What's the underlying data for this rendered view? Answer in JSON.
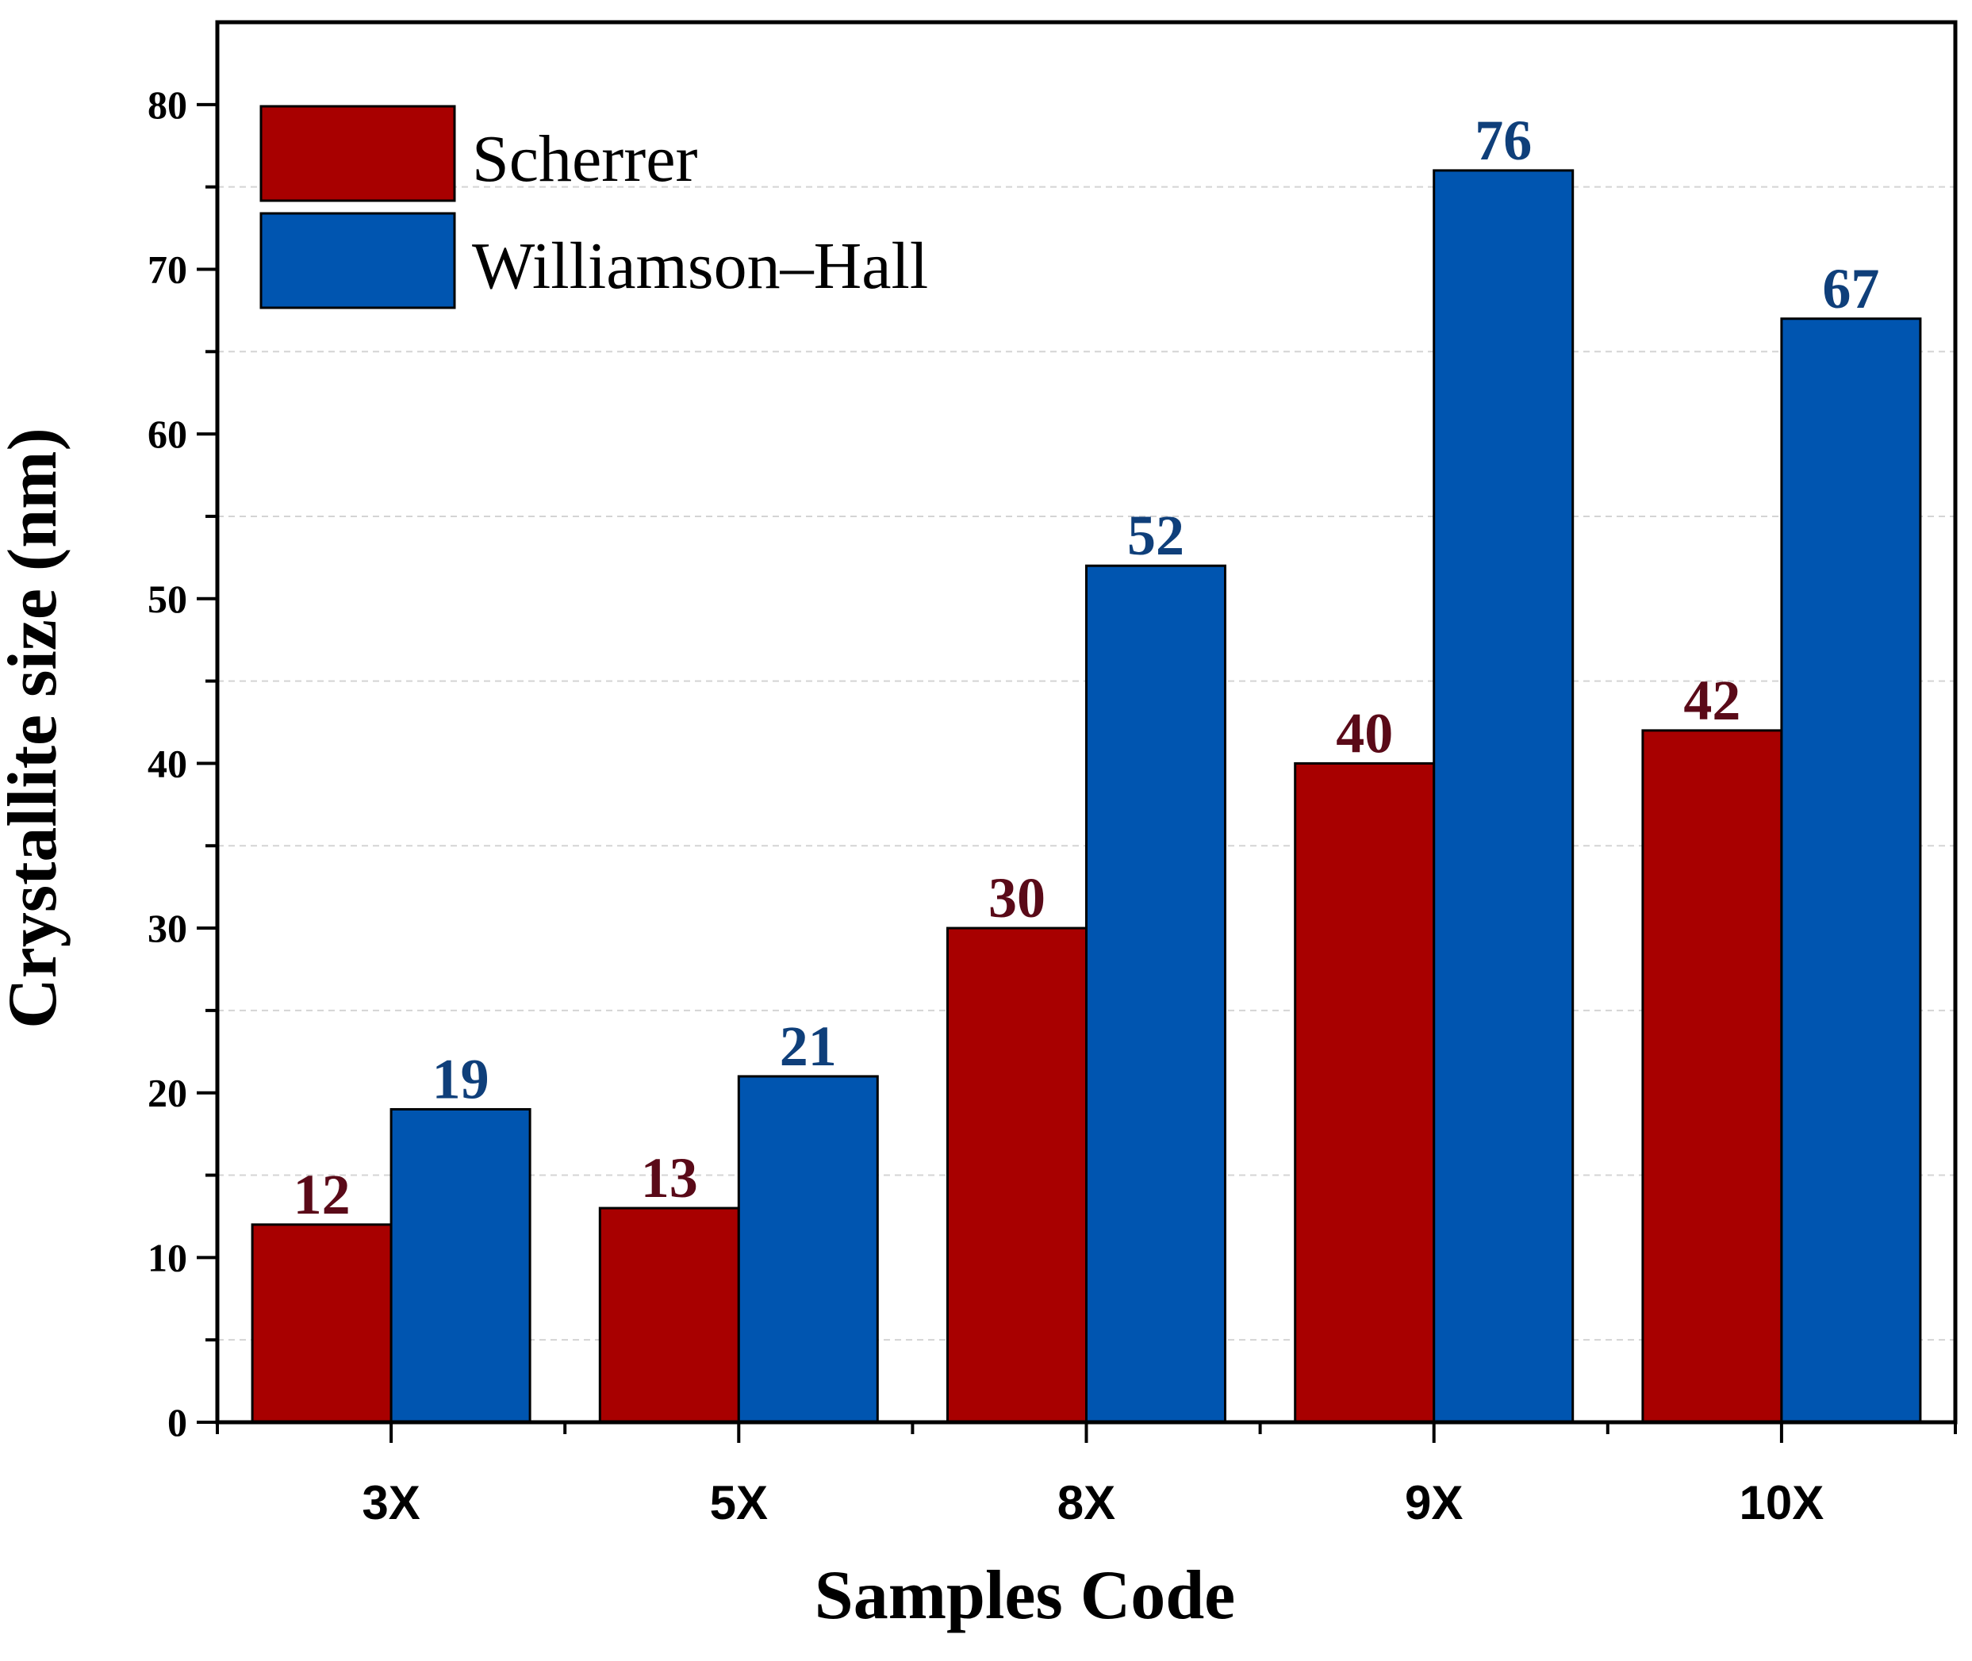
{
  "chart_data": {
    "type": "bar",
    "title": "",
    "xlabel": "Samples Code",
    "ylabel": "Crystallite size (nm)",
    "categories": [
      "3X",
      "5X",
      "8X",
      "9X",
      "10X"
    ],
    "series": [
      {
        "name": "Scherrer",
        "values": [
          12,
          13,
          30,
          40,
          42
        ],
        "color": "#a80000",
        "label_color": "#5a0a18"
      },
      {
        "name": "Williamson–Hall",
        "values": [
          19,
          21,
          52,
          76,
          67
        ],
        "color": "#0055b0",
        "label_color": "#0f3f7a"
      }
    ],
    "ylim": [
      0,
      85
    ],
    "yticks": [
      0,
      10,
      20,
      30,
      40,
      50,
      60,
      70,
      80
    ],
    "ytick_labels": [
      "0",
      "10",
      "20",
      "30",
      "40",
      "50",
      "60",
      "70",
      "80"
    ],
    "minor_grid": [
      5,
      15,
      25,
      35,
      45,
      55,
      65,
      75
    ],
    "grid": "dashed minor gridlines",
    "legend_position": "top-left",
    "data_labels": true
  }
}
